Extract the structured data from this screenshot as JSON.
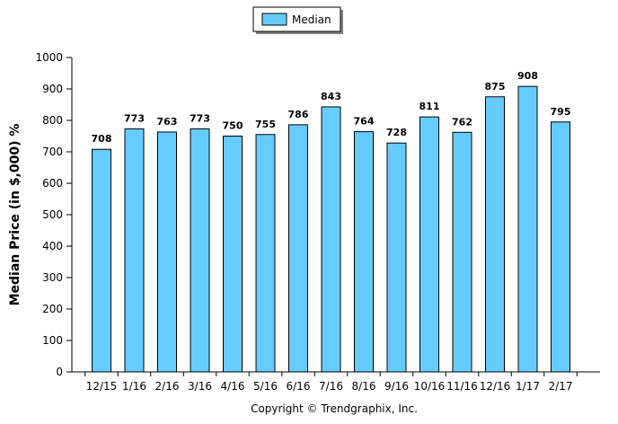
{
  "chart_data": {
    "type": "bar",
    "categories": [
      "12/15",
      "1/16",
      "2/16",
      "3/16",
      "4/16",
      "5/16",
      "6/16",
      "7/16",
      "8/16",
      "9/16",
      "10/16",
      "11/16",
      "12/16",
      "1/17",
      "2/17"
    ],
    "series": [
      {
        "name": "Median",
        "values": [
          708,
          773,
          763,
          773,
          750,
          755,
          786,
          843,
          764,
          728,
          811,
          762,
          875,
          908,
          795
        ]
      }
    ],
    "data_labels": [
      "708",
      "773",
      "763",
      "773",
      "750",
      "755",
      "786",
      "843",
      "764",
      "728",
      "811",
      "762",
      "875",
      "908",
      "795"
    ],
    "ylabel": "Median Price (in $,000) %",
    "xlabel": "",
    "ylim": [
      0,
      1000
    ],
    "yticks": [
      0,
      100,
      200,
      300,
      400,
      500,
      600,
      700,
      800,
      900,
      1000
    ],
    "grid": false,
    "legend": {
      "placement": "top-center",
      "entries": [
        "Median"
      ]
    },
    "footer": "Copyright © Trendgraphix, Inc.",
    "colors": {
      "bar_fill": "#66CCFF",
      "bar_stroke": "#000000",
      "axis": "#000000",
      "legend_shadow": "#808080"
    }
  }
}
